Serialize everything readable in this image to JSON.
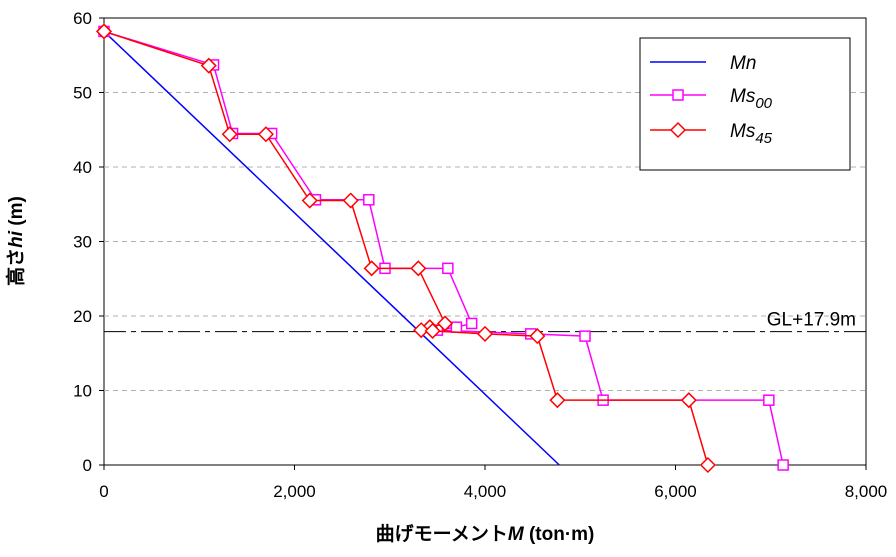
{
  "chart_data": {
    "type": "line",
    "title": "",
    "xlabel": "曲げモーメントM (ton·m)",
    "xlabel_parts": [
      "曲げモーメント",
      "M",
      " (ton·m)"
    ],
    "ylabel": "高さhi (m)",
    "ylabel_parts": [
      "高さ",
      "hi",
      " (m)"
    ],
    "xlim": [
      0,
      8000
    ],
    "ylim": [
      0,
      60
    ],
    "x_ticks": [
      0,
      2000,
      4000,
      6000,
      8000
    ],
    "x_tick_labels": [
      "0",
      "2,000",
      "4,000",
      "6,000",
      "8,000"
    ],
    "y_ticks": [
      0,
      10,
      20,
      30,
      40,
      50,
      60
    ],
    "y_tick_labels": [
      "0",
      "10",
      "20",
      "30",
      "40",
      "50",
      "60"
    ],
    "grid": "horizontal dashed",
    "legend_position": "top-right",
    "annotation": {
      "text": "GL+17.9m",
      "y": 17.9
    },
    "series": [
      {
        "name": "Mn",
        "legend_parts": [
          "Mn",
          ""
        ],
        "color": "#0000ff",
        "marker": "none",
        "x": [
          0,
          4780
        ],
        "y": [
          58.2,
          0
        ]
      },
      {
        "name": "Ms00",
        "legend_parts": [
          "Ms",
          "00"
        ],
        "color": "#ff00ff",
        "marker": "square",
        "x": [
          0,
          1150,
          1350,
          1760,
          2220,
          2780,
          2950,
          3610,
          3860,
          3700,
          3500,
          4480,
          5050,
          5240,
          6980,
          7130
        ],
        "y": [
          58.2,
          53.7,
          44.5,
          44.5,
          35.6,
          35.6,
          26.4,
          26.4,
          19.0,
          18.5,
          18.1,
          17.6,
          17.3,
          8.7,
          8.7,
          0
        ]
      },
      {
        "name": "Ms45",
        "legend_parts": [
          "Ms",
          "45"
        ],
        "color": "#ff0000",
        "marker": "diamond",
        "x": [
          0,
          1100,
          1320,
          1700,
          2160,
          2590,
          2810,
          3300,
          3580,
          3420,
          3330,
          3450,
          4000,
          4550,
          4760,
          6140,
          6340
        ],
        "y": [
          58.2,
          53.6,
          44.4,
          44.4,
          35.5,
          35.5,
          26.4,
          26.4,
          19.0,
          18.5,
          18.1,
          18.0,
          17.6,
          17.3,
          8.7,
          8.7,
          0
        ]
      }
    ]
  }
}
